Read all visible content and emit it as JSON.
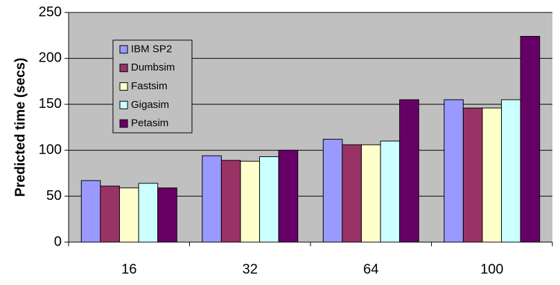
{
  "chart_data": {
    "type": "bar",
    "y_label": "Predicted time (secs)",
    "categories": [
      "16",
      "32",
      "64",
      "100"
    ],
    "series": [
      {
        "name": "IBM SP2",
        "color": "#9999ff",
        "values": [
          67,
          94,
          112,
          155
        ]
      },
      {
        "name": "Dumbsim",
        "color": "#993366",
        "values": [
          61,
          89,
          106,
          146
        ]
      },
      {
        "name": "Fastsim",
        "color": "#ffffcc",
        "values": [
          59,
          88,
          106,
          146
        ]
      },
      {
        "name": "Gigasim",
        "color": "#ccffff",
        "values": [
          64,
          93,
          110,
          155
        ]
      },
      {
        "name": "Petasim",
        "color": "#660066",
        "values": [
          59,
          100,
          155,
          224
        ]
      }
    ],
    "ylim": [
      0,
      250
    ],
    "yticks": [
      0,
      50,
      100,
      150,
      200,
      250
    ],
    "grid": true,
    "plot_color": "#c0c0c0",
    "legend": "upper-left"
  }
}
